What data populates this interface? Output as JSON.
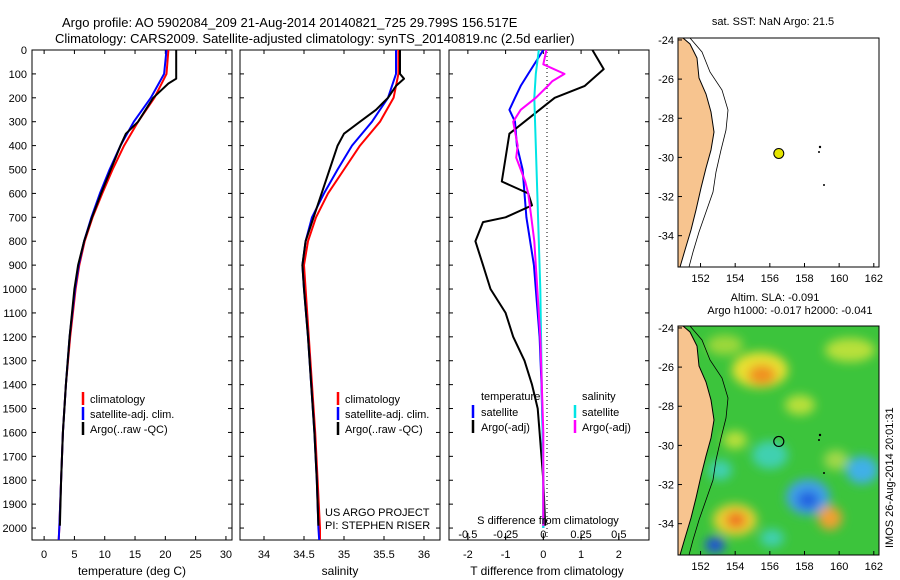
{
  "title": {
    "line1": "Argo profile: AO 5902084_209 21-Aug-2014 20140821_725 29.799S 156.517E",
    "line2": "Climatology: CARS2009. Satellite-adjusted climatology: synTS_20140819.nc (2.5d earlier)"
  },
  "colors": {
    "climatology": "#ff0000",
    "satellite": "#0000ff",
    "argo": "#000000",
    "sat_salinity": "#00e5e5",
    "argo_salinity": "#ff00ff",
    "land": "#f7c48f",
    "float_marker": "#e5e500"
  },
  "chart_data": [
    {
      "type": "line",
      "xlabel": "temperature (deg C)",
      "ylabel": "",
      "xlim": [
        -2,
        31
      ],
      "ylim": [
        2050,
        0
      ],
      "x_ticks": [
        0,
        5,
        10,
        15,
        20,
        25,
        30
      ],
      "y_ticks": [
        0,
        100,
        200,
        300,
        400,
        500,
        600,
        700,
        800,
        900,
        1000,
        1100,
        1200,
        1300,
        1400,
        1500,
        1600,
        1700,
        1800,
        1900,
        2000
      ],
      "legend": [
        "climatology",
        "satellite-adj. clim.",
        "Argo(..raw -QC)"
      ],
      "series": [
        {
          "name": "climatology",
          "depth": [
            0,
            100,
            200,
            300,
            400,
            500,
            600,
            700,
            800,
            900,
            1000,
            1200,
            1400,
            1600,
            1800,
            2000,
            2050
          ],
          "values": [
            20.5,
            20.2,
            18.2,
            15.5,
            13.2,
            11.3,
            9.6,
            8.0,
            6.7,
            5.8,
            5.2,
            4.3,
            3.6,
            3.1,
            2.8,
            2.5,
            2.4
          ]
        },
        {
          "name": "satellite-adj. clim.",
          "depth": [
            0,
            100,
            200,
            300,
            400,
            500,
            600,
            700,
            800,
            900,
            1000,
            1200,
            1400,
            1600,
            1800,
            2000,
            2050
          ],
          "values": [
            20.2,
            19.8,
            17.6,
            14.8,
            12.6,
            10.8,
            9.2,
            7.8,
            6.6,
            5.7,
            5.1,
            4.2,
            3.6,
            3.1,
            2.8,
            2.5,
            2.4
          ]
        },
        {
          "name": "Argo(..raw -QC)",
          "depth": [
            0,
            120,
            140,
            200,
            300,
            350,
            400,
            500,
            600,
            700,
            800,
            900,
            1000,
            1200,
            1400,
            1600,
            1800,
            1990
          ],
          "values": [
            21.8,
            21.8,
            20.5,
            18.0,
            15.5,
            13.5,
            12.6,
            11.0,
            9.4,
            7.9,
            6.6,
            5.6,
            5.0,
            4.2,
            3.6,
            3.1,
            2.8,
            2.6
          ]
        }
      ]
    },
    {
      "type": "line",
      "xlabel": "salinity",
      "ylabel": "",
      "xlim": [
        33.7,
        36.2
      ],
      "ylim": [
        2050,
        0
      ],
      "x_ticks": [
        34,
        34.5,
        35,
        35.5,
        36
      ],
      "legend": [
        "climatology",
        "satellite-adj. clim.",
        "Argo(..raw -QC)"
      ],
      "series": [
        {
          "name": "climatology",
          "depth": [
            0,
            100,
            200,
            300,
            400,
            500,
            600,
            700,
            800,
            900,
            1000,
            1200,
            1400,
            1600,
            1800,
            2000,
            2050
          ],
          "values": [
            35.68,
            35.68,
            35.62,
            35.45,
            35.2,
            35.0,
            34.8,
            34.65,
            34.55,
            34.5,
            34.52,
            34.56,
            34.6,
            34.64,
            34.67,
            34.7,
            34.7
          ]
        },
        {
          "name": "satellite-adj. clim.",
          "depth": [
            0,
            100,
            200,
            300,
            400,
            500,
            600,
            700,
            800,
            900,
            1000,
            1200,
            1400,
            1600,
            1800,
            2000,
            2050
          ],
          "values": [
            35.65,
            35.65,
            35.55,
            35.35,
            35.1,
            34.92,
            34.75,
            34.6,
            34.52,
            34.48,
            34.5,
            34.55,
            34.59,
            34.63,
            34.66,
            34.68,
            34.69
          ]
        },
        {
          "name": "Argo(..raw -QC)",
          "depth": [
            0,
            100,
            120,
            150,
            200,
            250,
            300,
            350,
            400,
            500,
            600,
            700,
            800,
            900,
            1000,
            1200,
            1400,
            1600,
            1800,
            1990
          ],
          "values": [
            35.7,
            35.7,
            35.75,
            35.65,
            35.55,
            35.4,
            35.2,
            35.0,
            34.92,
            34.82,
            34.72,
            34.62,
            34.52,
            34.48,
            34.5,
            34.55,
            34.59,
            34.63,
            34.66,
            34.68
          ]
        }
      ]
    },
    {
      "type": "line",
      "xlabel": "T difference from climatology",
      "top_label": "S difference from climatology",
      "ylabel": "",
      "xlim": [
        -2.5,
        2.8
      ],
      "ylim": [
        2050,
        0
      ],
      "x_ticks": [
        -2,
        -1,
        0,
        1,
        2
      ],
      "s_ticks": [
        -0.5,
        -0.25,
        0,
        0.25,
        0.5
      ],
      "s_tick_labels": [
        "-0.5",
        "-0.25",
        "0",
        "0.25",
        "0.5"
      ],
      "legend_headers": [
        "temperature",
        "salinity"
      ],
      "legend": [
        "satellite",
        "Argo(-adj)",
        "satellite",
        "Argo(-adj)"
      ],
      "series": [
        {
          "name": "satellite",
          "quantity": "temperature",
          "depth": [
            0,
            100,
            150,
            200,
            250,
            300,
            400,
            500,
            700,
            900,
            1000,
            1200,
            1400,
            1600,
            1800,
            2000
          ],
          "values": [
            0,
            -0.4,
            -0.6,
            -0.75,
            -0.9,
            -0.75,
            -0.7,
            -0.55,
            -0.45,
            -0.25,
            -0.2,
            -0.1,
            -0.05,
            -0.02,
            0,
            0
          ]
        },
        {
          "name": "Argo(-adj)",
          "quantity": "temperature",
          "depth": [
            0,
            80,
            150,
            200,
            300,
            350,
            450,
            550,
            600,
            650,
            700,
            720,
            800,
            900,
            1000,
            1100,
            1200,
            1300,
            1400,
            1500,
            1600,
            1800,
            1990
          ],
          "values": [
            1.3,
            1.6,
            1.1,
            0.3,
            -0.5,
            -0.9,
            -1.0,
            -1.1,
            -0.4,
            -0.3,
            -1.0,
            -1.6,
            -1.8,
            -1.6,
            -1.4,
            -1.0,
            -0.8,
            -0.5,
            -0.3,
            -0.15,
            -0.1,
            0,
            0.05
          ]
        },
        {
          "name": "satellite",
          "quantity": "salinity",
          "depth": [
            0,
            100,
            200,
            400,
            600,
            800,
            1000,
            1400,
            1800,
            2000
          ],
          "values": [
            -0.03,
            -0.05,
            -0.06,
            -0.05,
            -0.04,
            -0.03,
            -0.02,
            -0.01,
            0,
            0
          ]
        },
        {
          "name": "Argo(-adj)",
          "quantity": "salinity",
          "depth": [
            0,
            60,
            100,
            130,
            150,
            200,
            250,
            300,
            400,
            450,
            500,
            550,
            600,
            700,
            800,
            900,
            1000,
            1100,
            1200,
            1400,
            1600,
            1800,
            1990
          ],
          "values": [
            0.02,
            0.0,
            0.14,
            0.06,
            0.03,
            -0.05,
            -0.15,
            -0.2,
            -0.17,
            -0.18,
            -0.15,
            -0.12,
            -0.1,
            -0.08,
            -0.06,
            -0.05,
            -0.04,
            -0.03,
            -0.02,
            -0.01,
            0,
            0,
            0
          ]
        }
      ]
    },
    {
      "type": "map",
      "title": "sat. SST: NaN Argo: 21.5",
      "lon_range": [
        150.7,
        162.3
      ],
      "lat_range": [
        -35.6,
        -23.9
      ],
      "x_ticks": [
        152,
        154,
        156,
        158,
        160,
        162
      ],
      "y_ticks": [
        -24,
        -26,
        -28,
        -30,
        -32,
        -34
      ],
      "float": {
        "lon": 156.517,
        "lat": -29.799
      }
    },
    {
      "type": "heatmap",
      "title": "Altim. SLA: -0.091",
      "subtitle": "Argo h1000: -0.017 h2000: -0.041",
      "lon_range": [
        150.7,
        162.3
      ],
      "lat_range": [
        -35.6,
        -23.9
      ],
      "x_ticks": [
        152,
        154,
        156,
        158,
        160,
        162
      ],
      "y_ticks": [
        -24,
        -26,
        -28,
        -30,
        -32,
        -34
      ],
      "float": {
        "lon": 156.517,
        "lat": -29.799
      }
    }
  ],
  "footer": {
    "project": "US ARGO PROJECT",
    "pi": "PI: STEPHEN RISER",
    "stamp": "IMOS 26-Aug-2014 20:01:31"
  }
}
